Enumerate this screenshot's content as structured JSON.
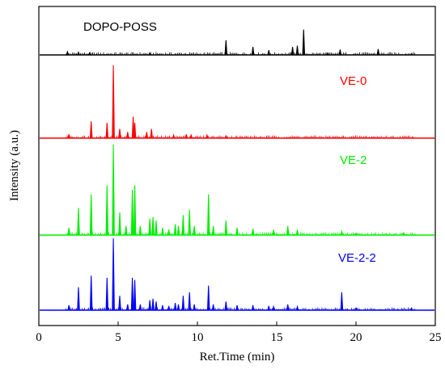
{
  "chart_data": {
    "type": "line",
    "xlabel": "Ret.Time (min)",
    "ylabel": "Intensity (a.u.)",
    "xlim": [
      0,
      25
    ],
    "x_ticks": [
      "0",
      "5",
      "10",
      "15",
      "20",
      "25"
    ],
    "y_ticks_shown": false,
    "legend": "none (series labels placed next to each trace)",
    "stacked_offset": true,
    "series": [
      {
        "name": "DOPO-POSS",
        "color": "#000000",
        "peaks": [
          [
            1.8,
            0.12
          ],
          [
            2.5,
            0.1
          ],
          [
            3.2,
            0.08
          ],
          [
            7.0,
            0.05
          ],
          [
            11.8,
            0.55
          ],
          [
            13.5,
            0.3
          ],
          [
            14.5,
            0.18
          ],
          [
            16.0,
            0.3
          ],
          [
            16.3,
            0.35
          ],
          [
            16.7,
            0.95
          ],
          [
            18.2,
            0.06
          ],
          [
            19.0,
            0.2
          ],
          [
            21.4,
            0.22
          ],
          [
            23.5,
            0.05
          ]
        ]
      },
      {
        "name": "VE-0",
        "color": "#ff0000",
        "peaks": [
          [
            1.9,
            0.05
          ],
          [
            3.3,
            0.22
          ],
          [
            4.3,
            0.2
          ],
          [
            4.7,
            0.95
          ],
          [
            5.1,
            0.12
          ],
          [
            5.6,
            0.08
          ],
          [
            5.95,
            0.28
          ],
          [
            6.05,
            0.2
          ],
          [
            6.8,
            0.08
          ],
          [
            7.1,
            0.12
          ],
          [
            8.5,
            0.04
          ],
          [
            9.3,
            0.05
          ],
          [
            9.6,
            0.04
          ],
          [
            10.6,
            0.04
          ],
          [
            11.8,
            0.03
          ]
        ]
      },
      {
        "name": "VE-2",
        "color": "#00ee00",
        "peaks": [
          [
            1.9,
            0.08
          ],
          [
            2.5,
            0.3
          ],
          [
            3.3,
            0.45
          ],
          [
            4.3,
            0.55
          ],
          [
            4.7,
            1.0
          ],
          [
            5.1,
            0.25
          ],
          [
            5.5,
            0.1
          ],
          [
            5.9,
            0.5
          ],
          [
            6.05,
            0.55
          ],
          [
            6.4,
            0.1
          ],
          [
            7.0,
            0.18
          ],
          [
            7.2,
            0.2
          ],
          [
            7.4,
            0.16
          ],
          [
            7.8,
            0.08
          ],
          [
            8.2,
            0.06
          ],
          [
            8.6,
            0.12
          ],
          [
            8.8,
            0.1
          ],
          [
            9.1,
            0.22
          ],
          [
            9.5,
            0.28
          ],
          [
            9.8,
            0.1
          ],
          [
            10.7,
            0.45
          ],
          [
            11.0,
            0.1
          ],
          [
            11.8,
            0.16
          ],
          [
            12.5,
            0.08
          ],
          [
            13.5,
            0.07
          ],
          [
            14.8,
            0.06
          ],
          [
            15.7,
            0.1
          ],
          [
            16.3,
            0.06
          ],
          [
            19.1,
            0.04
          ],
          [
            20.0,
            0.02
          ],
          [
            23.0,
            0.02
          ]
        ]
      },
      {
        "name": "VE-2-2",
        "color": "#0000ff",
        "peaks": [
          [
            1.9,
            0.07
          ],
          [
            2.5,
            0.32
          ],
          [
            3.3,
            0.48
          ],
          [
            4.3,
            0.45
          ],
          [
            4.7,
            1.0
          ],
          [
            5.1,
            0.2
          ],
          [
            5.6,
            0.08
          ],
          [
            5.9,
            0.45
          ],
          [
            6.05,
            0.42
          ],
          [
            6.4,
            0.08
          ],
          [
            7.0,
            0.14
          ],
          [
            7.2,
            0.16
          ],
          [
            7.4,
            0.12
          ],
          [
            7.8,
            0.07
          ],
          [
            8.2,
            0.06
          ],
          [
            8.6,
            0.1
          ],
          [
            8.8,
            0.08
          ],
          [
            9.1,
            0.2
          ],
          [
            9.5,
            0.25
          ],
          [
            9.8,
            0.08
          ],
          [
            10.7,
            0.34
          ],
          [
            11.0,
            0.08
          ],
          [
            11.8,
            0.12
          ],
          [
            12.5,
            0.07
          ],
          [
            13.5,
            0.07
          ],
          [
            14.5,
            0.06
          ],
          [
            14.8,
            0.05
          ],
          [
            15.7,
            0.08
          ],
          [
            16.3,
            0.05
          ],
          [
            19.1,
            0.25
          ],
          [
            20.0,
            0.03
          ],
          [
            23.5,
            0.03
          ]
        ]
      }
    ]
  }
}
